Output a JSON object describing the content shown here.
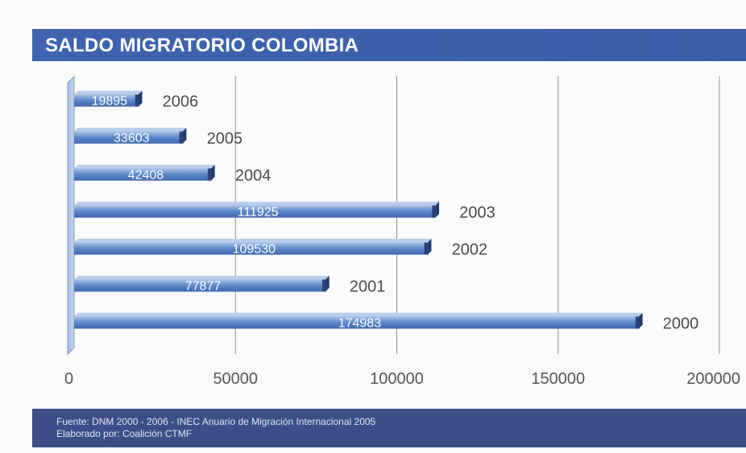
{
  "chart_data": {
    "type": "bar",
    "orientation": "horizontal",
    "title": "SALDO MIGRATORIO COLOMBIA",
    "categories": [
      "2006",
      "2005",
      "2004",
      "2003",
      "2002",
      "2001",
      "2000"
    ],
    "values": [
      19895,
      33603,
      42408,
      111925,
      109530,
      77877,
      174983
    ],
    "xlim": [
      0,
      200000
    ],
    "xticks": [
      "0",
      "50000",
      "100000",
      "150000",
      "200000"
    ],
    "grid": true,
    "colors": {
      "bar": "#5b86c8",
      "bar_end": "#23386e",
      "label": "#ffffff"
    }
  },
  "footer": {
    "line1": "Fuente: DNM 2000 - 2006  - INEC Anuario de Migración Internacional 2005",
    "line2": "Elaborado por: Coalición CTMF"
  }
}
